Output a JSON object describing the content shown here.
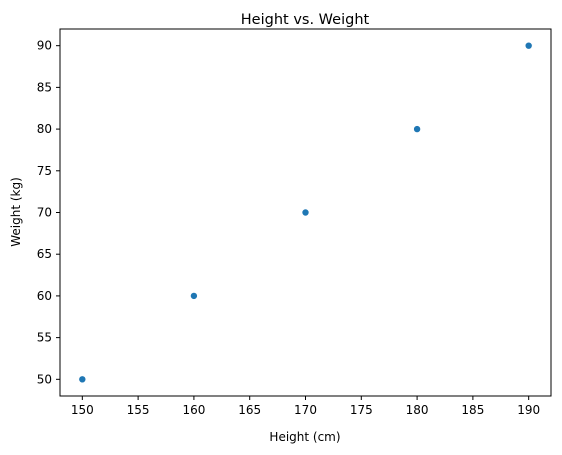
{
  "chart_data": {
    "type": "scatter",
    "title": "Height vs. Weight",
    "xlabel": "Height (cm)",
    "ylabel": "Weight (kg)",
    "xlim": [
      148,
      192
    ],
    "ylim": [
      48,
      92
    ],
    "xticks": [
      150,
      155,
      160,
      165,
      170,
      175,
      180,
      185,
      190
    ],
    "yticks": [
      50,
      55,
      60,
      65,
      70,
      75,
      80,
      85,
      90
    ],
    "grid": false,
    "legend": "none",
    "color": "#1f77b4",
    "series": [
      {
        "x": [
          150,
          160,
          170,
          180,
          190
        ],
        "y": [
          50,
          60,
          70,
          80,
          90
        ]
      }
    ]
  }
}
